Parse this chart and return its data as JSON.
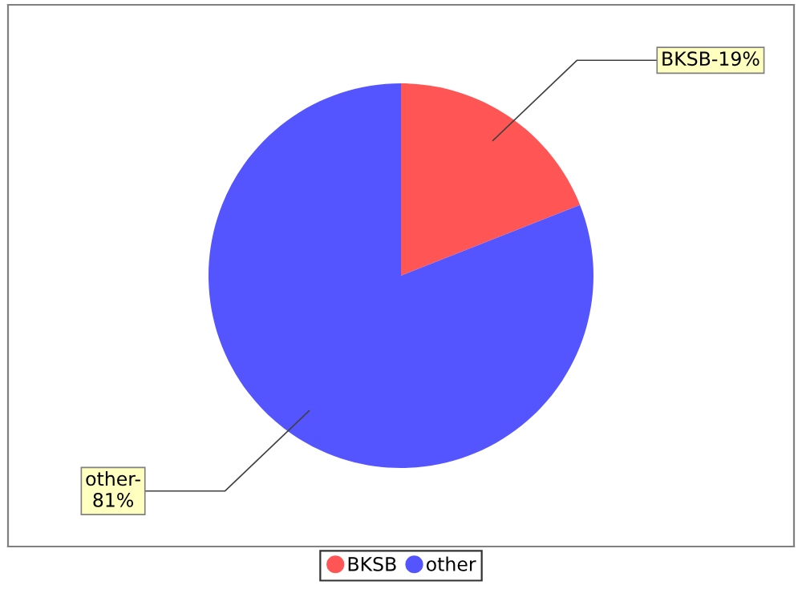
{
  "chart_data": {
    "type": "pie",
    "categories": [
      "BKSB",
      "other"
    ],
    "values": [
      19,
      81
    ],
    "colors": [
      "#ff5555",
      "#5555ff"
    ],
    "value_labels": [
      "BKSB-19%",
      "other-\n81%"
    ],
    "legend": "bottom"
  }
}
